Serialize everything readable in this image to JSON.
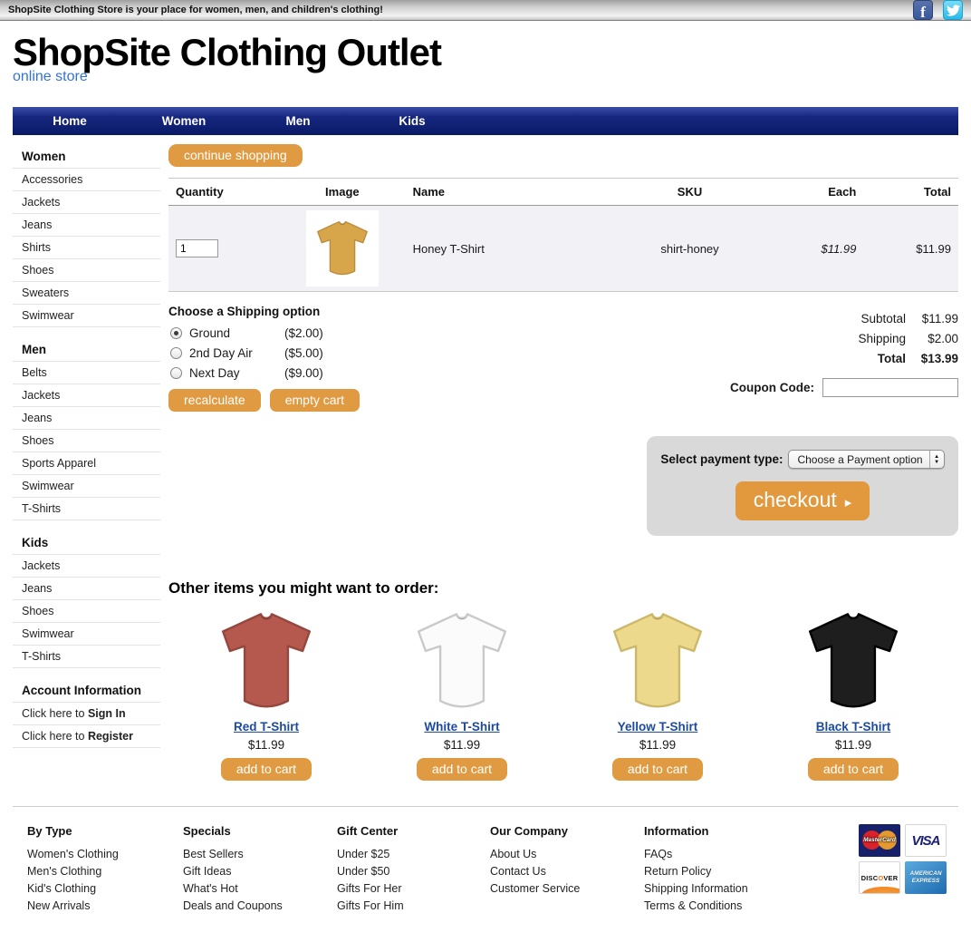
{
  "topbar": {
    "tagline": "ShopSite Clothing Store is your place for women, men, and children's clothing!",
    "social": [
      {
        "name": "facebook",
        "glyph": "f"
      },
      {
        "name": "twitter"
      }
    ]
  },
  "header": {
    "title": "ShopSite Clothing Outlet",
    "subtitle": "online store"
  },
  "nav": {
    "items": [
      "Home",
      "Women",
      "Men",
      "Kids"
    ]
  },
  "sidebar": {
    "sections": [
      {
        "title": "Women",
        "items": [
          "Accessories",
          "Jackets",
          "Jeans",
          "Shirts",
          "Shoes",
          "Sweaters",
          "Swimwear"
        ]
      },
      {
        "title": "Men",
        "items": [
          "Belts",
          "Jackets",
          "Jeans",
          "Shoes",
          "Sports Apparel",
          "Swimwear",
          "T-Shirts"
        ]
      },
      {
        "title": "Kids",
        "items": [
          "Jackets",
          "Jeans",
          "Shoes",
          "Swimwear",
          "T-Shirts"
        ]
      }
    ],
    "account": {
      "title": "Account Information",
      "items": [
        {
          "prefix": "Click here to ",
          "bold": "Sign In"
        },
        {
          "prefix": "Click here to ",
          "bold": "Register"
        }
      ]
    }
  },
  "cart": {
    "continue_shopping_label": "continue shopping",
    "table": {
      "headers": [
        "Quantity",
        "Image",
        "Name",
        "SKU",
        "Each",
        "Total"
      ],
      "rows": [
        {
          "quantity": "1",
          "name": "Honey T-Shirt",
          "sku": "shirt-honey",
          "each": "$11.99",
          "total": "$11.99",
          "image_color": "#d8a64a",
          "image_outline": "#bb8c3c"
        }
      ]
    },
    "shipping": {
      "title": "Choose a Shipping option",
      "options": [
        {
          "label": "Ground",
          "price": "($2.00)",
          "selected": true
        },
        {
          "label": "2nd Day Air",
          "price": "($5.00)",
          "selected": false
        },
        {
          "label": "Next Day",
          "price": "($9.00)",
          "selected": false
        }
      ]
    },
    "buttons": {
      "recalculate": "recalculate",
      "empty_cart": "empty cart"
    },
    "totals": [
      {
        "label": "Subtotal",
        "value": "$11.99",
        "bold": false
      },
      {
        "label": "Shipping",
        "value": "$2.00",
        "bold": false
      },
      {
        "label": "Total",
        "value": "$13.99",
        "bold": true
      }
    ],
    "coupon": {
      "label": "Coupon Code:",
      "value": ""
    }
  },
  "payment": {
    "label": "Select payment type:",
    "selected_option": "Choose a Payment option",
    "checkout_label": "checkout"
  },
  "suggestions": {
    "title": "Other items you might want to order:",
    "add_to_cart_label": "add to cart",
    "products": [
      {
        "name": "Red T-Shirt",
        "price": "$11.99",
        "color": "#b5584d",
        "outline": "#94473e"
      },
      {
        "name": "White T-Shirt",
        "price": "$11.99",
        "color": "#fbfbfb",
        "outline": "#c9c9c9"
      },
      {
        "name": "Yellow T-Shirt",
        "price": "$11.99",
        "color": "#ecd98b",
        "outline": "#cdb86a"
      },
      {
        "name": "Black T-Shirt",
        "price": "$11.99",
        "color": "#1e1e1e",
        "outline": "#000000"
      }
    ]
  },
  "footer": {
    "columns": [
      {
        "title": "By Type",
        "links": [
          "Women's Clothing",
          "Men's Clothing",
          "Kid's Clothing",
          "New Arrivals"
        ]
      },
      {
        "title": "Specials",
        "links": [
          "Best Sellers",
          "Gift Ideas",
          "What's Hot",
          "Deals and Coupons"
        ]
      },
      {
        "title": "Gift Center",
        "links": [
          "Under $25",
          "Under $50",
          "Gifts For Her",
          "Gifts For Him"
        ]
      },
      {
        "title": "Our Company",
        "links": [
          "About Us",
          "Contact Us",
          "Customer Service"
        ]
      },
      {
        "title": "Information",
        "links": [
          "FAQs",
          "Return Policy",
          "Shipping Information",
          "Terms & Conditions"
        ]
      }
    ],
    "cards": [
      {
        "name": "mastercard",
        "label": "MasterCard"
      },
      {
        "name": "visa",
        "label": "VISA"
      },
      {
        "name": "discover",
        "label": "DISCOVER"
      },
      {
        "name": "amex",
        "label": "AMERICAN EXPRESS"
      }
    ]
  },
  "colors": {
    "accent_orange": "#e09a41",
    "nav_blue": "#17277f",
    "link_blue": "#1d4a9e",
    "row_bg": "#f1f1f6"
  }
}
